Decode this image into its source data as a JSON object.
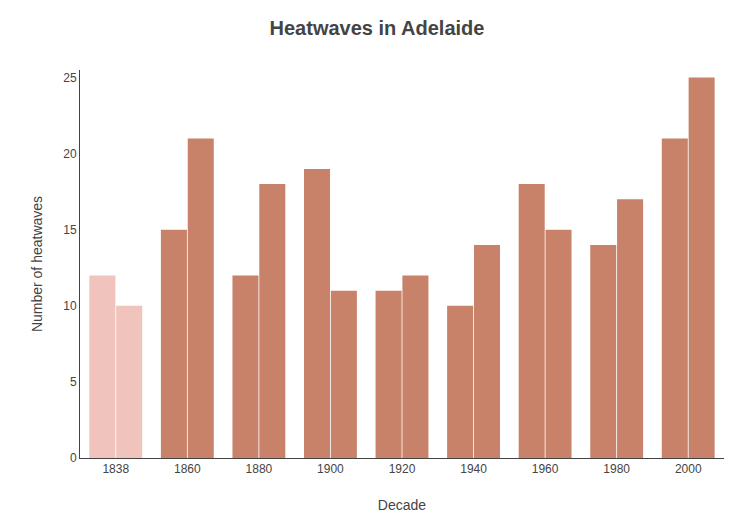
{
  "chart_data": {
    "type": "bar",
    "title": "Heatwaves in Adelaide",
    "xlabel": "Decade",
    "ylabel": "Number of heatwaves",
    "categories": [
      "1838",
      "1860",
      "1880",
      "1900",
      "1920",
      "1940",
      "1960",
      "1980",
      "2000"
    ],
    "series": [
      {
        "values": [
          12,
          15,
          12,
          19,
          11,
          10,
          18,
          14,
          21
        ],
        "colors": [
          "#f0c4bc",
          "#c9826a",
          "#c9826a",
          "#c9826a",
          "#c9826a",
          "#c9826a",
          "#c9826a",
          "#c9826a",
          "#c9826a"
        ]
      },
      {
        "values": [
          10,
          21,
          18,
          11,
          12,
          14,
          15,
          17,
          25
        ],
        "colors": [
          "#f0c4bc",
          "#c9826a",
          "#c9826a",
          "#c9826a",
          "#c9826a",
          "#c9826a",
          "#c9826a",
          "#c9826a",
          "#c9826a"
        ]
      }
    ],
    "ylim": [
      0,
      25.5
    ],
    "yticks": [
      0,
      5,
      10,
      15,
      20,
      25
    ],
    "grid": false
  }
}
